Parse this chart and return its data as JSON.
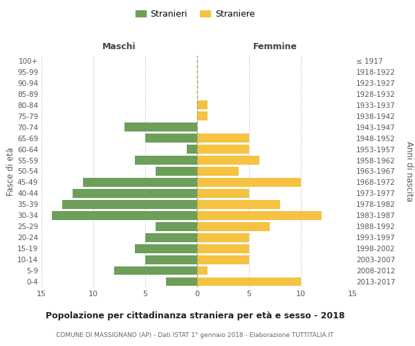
{
  "age_groups": [
    "0-4",
    "5-9",
    "10-14",
    "15-19",
    "20-24",
    "25-29",
    "30-34",
    "35-39",
    "40-44",
    "45-49",
    "50-54",
    "55-59",
    "60-64",
    "65-69",
    "70-74",
    "75-79",
    "80-84",
    "85-89",
    "90-94",
    "95-99",
    "100+"
  ],
  "birth_years": [
    "2013-2017",
    "2008-2012",
    "2003-2007",
    "1998-2002",
    "1993-1997",
    "1988-1992",
    "1983-1987",
    "1978-1982",
    "1973-1977",
    "1968-1972",
    "1963-1967",
    "1958-1962",
    "1953-1957",
    "1948-1952",
    "1943-1947",
    "1938-1942",
    "1933-1937",
    "1928-1932",
    "1923-1927",
    "1918-1922",
    "≤ 1917"
  ],
  "males": [
    3,
    8,
    5,
    6,
    5,
    4,
    14,
    13,
    12,
    11,
    4,
    6,
    1,
    5,
    7,
    0,
    0,
    0,
    0,
    0,
    0
  ],
  "females": [
    10,
    1,
    5,
    5,
    5,
    7,
    12,
    8,
    5,
    10,
    4,
    6,
    5,
    5,
    0,
    1,
    1,
    0,
    0,
    0,
    0
  ],
  "male_color": "#6d9e5a",
  "female_color": "#f5c242",
  "title": "Popolazione per cittadinanza straniera per età e sesso - 2018",
  "subtitle": "COMUNE DI MASSIGNANO (AP) - Dati ISTAT 1° gennaio 2018 - Elaborazione TUTTITALIA.IT",
  "xlabel_left": "Maschi",
  "xlabel_right": "Femmine",
  "ylabel": "Fasce di età",
  "ylabel_right": "Anni di nascita",
  "legend_male": "Stranieri",
  "legend_female": "Straniere",
  "xlim": 15,
  "background_color": "#ffffff",
  "grid_color": "#cccccc"
}
